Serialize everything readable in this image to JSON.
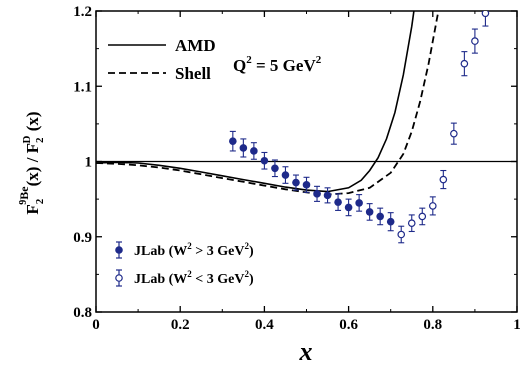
{
  "chart_data": {
    "type": "line",
    "xlabel": "x",
    "ylabel": {
      "F": "F",
      "sub": "2",
      "sup_pre": "9",
      "sup_main": "Be",
      "arg": "(x) / F",
      "sub2": "2",
      "sup2": "D",
      "arg2": " (x)"
    },
    "xlim": [
      0,
      1
    ],
    "ylim": [
      0.8,
      1.2
    ],
    "x_ticks": [
      "0",
      "0.2",
      "0.4",
      "0.6",
      "0.8",
      "1"
    ],
    "y_ticks": [
      "0.8",
      "0.9",
      "1",
      "1.1",
      "1.2"
    ],
    "reference_line_y": 1.0,
    "annotation": {
      "prefix": "Q",
      "sup": "2",
      "mid": " = 5 GeV",
      "sup2": "2"
    },
    "legend_top": [
      {
        "label": "AMD",
        "style": "solid"
      },
      {
        "label": "Shell",
        "style": "dashed"
      }
    ],
    "legend_bottom": [
      {
        "label_pre": "JLab (W",
        "sup": "2",
        "label_post": " > 3 GeV",
        "sup2": "2",
        "label_end": ")",
        "marker": "filled-circle"
      },
      {
        "label_pre": "JLab (W",
        "sup": "2",
        "label_post": " < 3 GeV",
        "sup2": "2",
        "label_end": ")",
        "marker": "open-circle"
      }
    ],
    "colors": {
      "data": "#1e2a8a",
      "curves": "#000000"
    },
    "series": [
      {
        "name": "AMD",
        "kind": "curve",
        "style": "solid",
        "points": [
          [
            0,
            0.998
          ],
          [
            0.05,
            0.999
          ],
          [
            0.1,
            0.998
          ],
          [
            0.15,
            0.995
          ],
          [
            0.2,
            0.991
          ],
          [
            0.25,
            0.986
          ],
          [
            0.3,
            0.981
          ],
          [
            0.35,
            0.976
          ],
          [
            0.4,
            0.971
          ],
          [
            0.45,
            0.966
          ],
          [
            0.5,
            0.962
          ],
          [
            0.55,
            0.96
          ],
          [
            0.6,
            0.965
          ],
          [
            0.63,
            0.975
          ],
          [
            0.65,
            0.988
          ],
          [
            0.67,
            1.005
          ],
          [
            0.69,
            1.03
          ],
          [
            0.71,
            1.065
          ],
          [
            0.73,
            1.115
          ],
          [
            0.75,
            1.18
          ],
          [
            0.76,
            1.22
          ]
        ]
      },
      {
        "name": "Shell",
        "kind": "curve",
        "style": "dashed",
        "points": [
          [
            0,
            0.998
          ],
          [
            0.05,
            0.997
          ],
          [
            0.1,
            0.995
          ],
          [
            0.15,
            0.992
          ],
          [
            0.2,
            0.988
          ],
          [
            0.25,
            0.983
          ],
          [
            0.3,
            0.978
          ],
          [
            0.35,
            0.973
          ],
          [
            0.4,
            0.968
          ],
          [
            0.45,
            0.963
          ],
          [
            0.5,
            0.959
          ],
          [
            0.55,
            0.956
          ],
          [
            0.6,
            0.958
          ],
          [
            0.65,
            0.965
          ],
          [
            0.7,
            0.985
          ],
          [
            0.73,
            1.01
          ],
          [
            0.75,
            1.04
          ],
          [
            0.77,
            1.08
          ],
          [
            0.79,
            1.13
          ],
          [
            0.81,
            1.19
          ],
          [
            0.82,
            1.22
          ]
        ]
      },
      {
        "name": "JLab (W² > 3 GeV²)",
        "kind": "points",
        "marker": "filled",
        "points": [
          {
            "x": 0.325,
            "y": 1.027,
            "err": 0.013
          },
          {
            "x": 0.35,
            "y": 1.018,
            "err": 0.012
          },
          {
            "x": 0.375,
            "y": 1.014,
            "err": 0.011
          },
          {
            "x": 0.4,
            "y": 1.001,
            "err": 0.011
          },
          {
            "x": 0.425,
            "y": 0.991,
            "err": 0.011
          },
          {
            "x": 0.45,
            "y": 0.982,
            "err": 0.011
          },
          {
            "x": 0.475,
            "y": 0.972,
            "err": 0.01
          },
          {
            "x": 0.5,
            "y": 0.969,
            "err": 0.01
          },
          {
            "x": 0.525,
            "y": 0.957,
            "err": 0.01
          },
          {
            "x": 0.55,
            "y": 0.955,
            "err": 0.01
          },
          {
            "x": 0.575,
            "y": 0.946,
            "err": 0.011
          },
          {
            "x": 0.6,
            "y": 0.939,
            "err": 0.011
          },
          {
            "x": 0.625,
            "y": 0.945,
            "err": 0.011
          },
          {
            "x": 0.65,
            "y": 0.933,
            "err": 0.011
          },
          {
            "x": 0.675,
            "y": 0.927,
            "err": 0.011
          },
          {
            "x": 0.7,
            "y": 0.92,
            "err": 0.012
          }
        ]
      },
      {
        "name": "JLab (W² < 3 GeV²)",
        "kind": "points",
        "marker": "open",
        "points": [
          {
            "x": 0.725,
            "y": 0.903,
            "err": 0.011
          },
          {
            "x": 0.75,
            "y": 0.918,
            "err": 0.011
          },
          {
            "x": 0.775,
            "y": 0.927,
            "err": 0.011
          },
          {
            "x": 0.8,
            "y": 0.941,
            "err": 0.012
          },
          {
            "x": 0.825,
            "y": 0.976,
            "err": 0.012
          },
          {
            "x": 0.85,
            "y": 1.037,
            "err": 0.014
          },
          {
            "x": 0.875,
            "y": 1.13,
            "err": 0.016
          },
          {
            "x": 0.9,
            "y": 1.16,
            "err": 0.016
          },
          {
            "x": 0.925,
            "y": 1.197,
            "err": 0.017
          }
        ]
      }
    ]
  }
}
